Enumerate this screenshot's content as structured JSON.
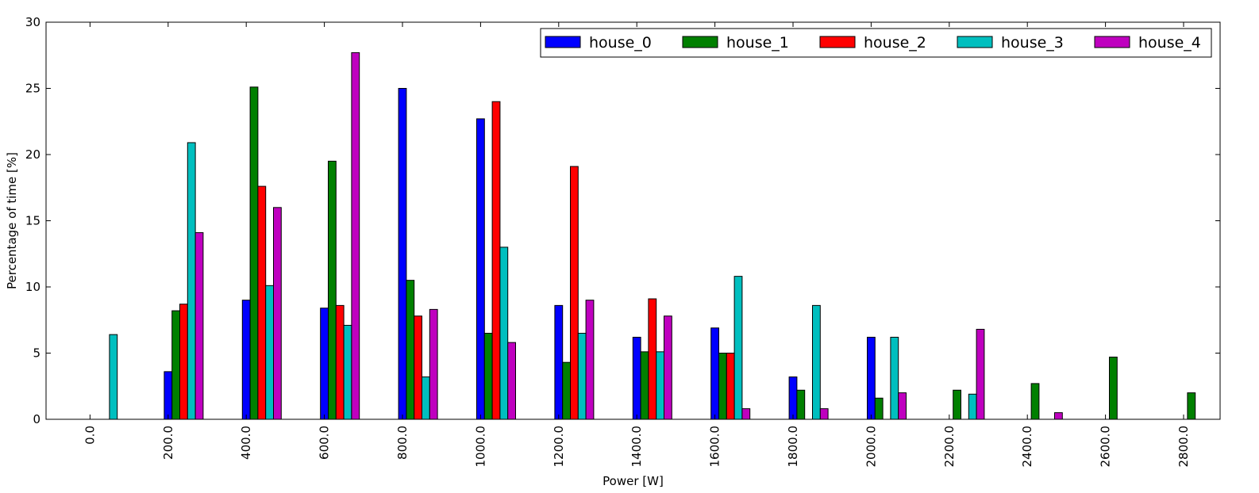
{
  "chart_data": {
    "type": "bar",
    "title": "",
    "xlabel": "Power [W]",
    "ylabel": "Percentage of time [%]",
    "ylim": [
      0,
      30
    ],
    "yticks": [
      "0",
      "5",
      "10",
      "15",
      "20",
      "25",
      "30"
    ],
    "grid": false,
    "legend_position": "top-right",
    "categories": [
      "0.0",
      "200.0",
      "400.0",
      "600.0",
      "800.0",
      "1000.0",
      "1200.0",
      "1400.0",
      "1600.0",
      "1800.0",
      "2000.0",
      "2200.0",
      "2400.0",
      "2600.0",
      "2800.0"
    ],
    "series": [
      {
        "name": "house_0",
        "color": "#0000ff",
        "values": [
          0,
          3.6,
          9.0,
          8.4,
          25.0,
          22.7,
          8.6,
          6.2,
          6.9,
          3.2,
          6.2,
          0,
          0,
          0,
          0
        ]
      },
      {
        "name": "house_1",
        "color": "#008000",
        "values": [
          0,
          8.2,
          25.1,
          19.5,
          10.5,
          6.5,
          4.3,
          5.1,
          5.0,
          2.2,
          1.6,
          2.2,
          2.7,
          4.7,
          2.0
        ]
      },
      {
        "name": "house_2",
        "color": "#ff0000",
        "values": [
          0,
          8.7,
          17.6,
          8.6,
          7.8,
          24.0,
          19.1,
          9.1,
          5.0,
          0,
          0,
          0,
          0,
          0,
          0
        ]
      },
      {
        "name": "house_3",
        "color": "#00bfbf",
        "values": [
          6.4,
          20.9,
          10.1,
          7.1,
          3.2,
          13.0,
          6.5,
          5.1,
          10.8,
          8.6,
          6.2,
          1.9,
          0,
          0,
          0
        ]
      },
      {
        "name": "house_4",
        "color": "#bf00bf",
        "values": [
          0,
          14.1,
          16.0,
          27.7,
          8.3,
          5.8,
          9.0,
          7.8,
          0.8,
          0.8,
          2.0,
          6.8,
          0.5,
          0,
          0
        ]
      }
    ]
  }
}
